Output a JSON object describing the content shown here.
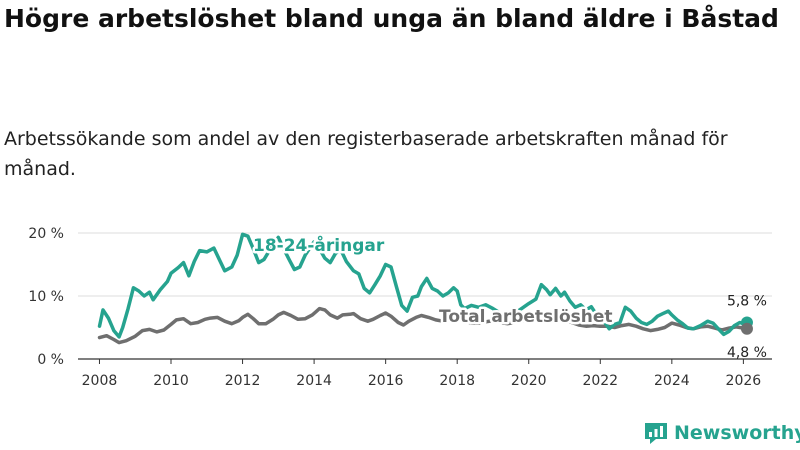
{
  "title": "Högre arbetslöshet bland unga än bland äldre i Båstad",
  "subtitle": "Arbetssökande som andel av den registerbaserade arbetskraften månad för månad.",
  "brand": {
    "name": "Newsworthy",
    "color": "#26a38f",
    "icon": "newsworthy-logo-icon"
  },
  "chart_data": {
    "type": "line",
    "title": "Högre arbetslöshet bland unga än bland äldre i Båstad",
    "xlabel": "",
    "ylabel": "",
    "xlim": [
      2007.4,
      2026.8
    ],
    "ylim": [
      0,
      20
    ],
    "grid": true,
    "x_ticks": [
      2008,
      2010,
      2012,
      2014,
      2016,
      2018,
      2020,
      2022,
      2024,
      2026
    ],
    "x_tick_labels": [
      "2008",
      "2010",
      "2012",
      "2014",
      "2016",
      "2018",
      "2020",
      "2022",
      "2024",
      "2026"
    ],
    "y_ticks": [
      0,
      10,
      20
    ],
    "y_tick_labels": [
      "0 %",
      "10 %",
      "20 %"
    ],
    "series": [
      {
        "name": "18-24-åringar",
        "color": "#26a38f",
        "end_label": "5,8 %",
        "points": [
          [
            2008.0,
            5.2
          ],
          [
            2008.1,
            7.8
          ],
          [
            2008.25,
            6.5
          ],
          [
            2008.4,
            4.5
          ],
          [
            2008.55,
            3.5
          ],
          [
            2008.65,
            5.0
          ],
          [
            2008.8,
            8.0
          ],
          [
            2008.95,
            11.3
          ],
          [
            2009.1,
            10.8
          ],
          [
            2009.25,
            10.0
          ],
          [
            2009.4,
            10.6
          ],
          [
            2009.5,
            9.4
          ],
          [
            2009.7,
            11.0
          ],
          [
            2009.9,
            12.3
          ],
          [
            2010.0,
            13.6
          ],
          [
            2010.2,
            14.5
          ],
          [
            2010.35,
            15.3
          ],
          [
            2010.5,
            13.2
          ],
          [
            2010.65,
            15.5
          ],
          [
            2010.8,
            17.2
          ],
          [
            2011.0,
            17.0
          ],
          [
            2011.2,
            17.6
          ],
          [
            2011.35,
            15.8
          ],
          [
            2011.5,
            14.0
          ],
          [
            2011.7,
            14.6
          ],
          [
            2011.85,
            16.5
          ],
          [
            2012.0,
            19.8
          ],
          [
            2012.15,
            19.5
          ],
          [
            2012.3,
            17.5
          ],
          [
            2012.45,
            15.3
          ],
          [
            2012.6,
            15.8
          ],
          [
            2012.75,
            17.2
          ],
          [
            2012.9,
            18.5
          ],
          [
            2013.0,
            19.3
          ],
          [
            2013.15,
            17.5
          ],
          [
            2013.3,
            15.8
          ],
          [
            2013.45,
            14.2
          ],
          [
            2013.6,
            14.6
          ],
          [
            2013.75,
            16.5
          ],
          [
            2013.9,
            17.8
          ],
          [
            2014.0,
            18.6
          ],
          [
            2014.15,
            17.5
          ],
          [
            2014.3,
            16.0
          ],
          [
            2014.45,
            15.3
          ],
          [
            2014.6,
            16.8
          ],
          [
            2014.75,
            17.3
          ],
          [
            2014.9,
            15.5
          ],
          [
            2015.1,
            14.0
          ],
          [
            2015.25,
            13.5
          ],
          [
            2015.4,
            11.2
          ],
          [
            2015.55,
            10.5
          ],
          [
            2015.7,
            11.8
          ],
          [
            2015.85,
            13.2
          ],
          [
            2016.0,
            15.0
          ],
          [
            2016.15,
            14.6
          ],
          [
            2016.3,
            11.5
          ],
          [
            2016.45,
            8.5
          ],
          [
            2016.6,
            7.6
          ],
          [
            2016.75,
            9.8
          ],
          [
            2016.9,
            10.0
          ],
          [
            2017.0,
            11.5
          ],
          [
            2017.15,
            12.8
          ],
          [
            2017.3,
            11.2
          ],
          [
            2017.45,
            10.8
          ],
          [
            2017.6,
            10.0
          ],
          [
            2017.75,
            10.5
          ],
          [
            2017.9,
            11.3
          ],
          [
            2018.0,
            10.8
          ],
          [
            2018.1,
            8.6
          ],
          [
            2018.2,
            8.0
          ],
          [
            2018.4,
            8.5
          ],
          [
            2018.6,
            8.2
          ],
          [
            2018.8,
            8.6
          ],
          [
            2019.0,
            8.0
          ],
          [
            2019.2,
            7.3
          ],
          [
            2019.4,
            7.0
          ],
          [
            2019.6,
            7.2
          ],
          [
            2019.8,
            8.0
          ],
          [
            2020.0,
            8.8
          ],
          [
            2020.2,
            9.5
          ],
          [
            2020.35,
            11.8
          ],
          [
            2020.5,
            11.0
          ],
          [
            2020.6,
            10.2
          ],
          [
            2020.75,
            11.2
          ],
          [
            2020.9,
            10.0
          ],
          [
            2021.0,
            10.6
          ],
          [
            2021.15,
            9.2
          ],
          [
            2021.3,
            8.2
          ],
          [
            2021.45,
            8.6
          ],
          [
            2021.6,
            7.8
          ],
          [
            2021.75,
            8.3
          ],
          [
            2021.9,
            7.0
          ],
          [
            2022.0,
            6.8
          ],
          [
            2022.1,
            6.0
          ],
          [
            2022.25,
            4.8
          ],
          [
            2022.4,
            5.5
          ],
          [
            2022.55,
            5.8
          ],
          [
            2022.7,
            8.2
          ],
          [
            2022.85,
            7.6
          ],
          [
            2023.0,
            6.5
          ],
          [
            2023.15,
            5.8
          ],
          [
            2023.3,
            5.5
          ],
          [
            2023.45,
            6.0
          ],
          [
            2023.6,
            6.8
          ],
          [
            2023.75,
            7.2
          ],
          [
            2023.9,
            7.6
          ],
          [
            2024.0,
            7.0
          ],
          [
            2024.15,
            6.2
          ],
          [
            2024.3,
            5.6
          ],
          [
            2024.45,
            4.9
          ],
          [
            2024.6,
            4.8
          ],
          [
            2024.8,
            5.3
          ],
          [
            2025.0,
            6.0
          ],
          [
            2025.15,
            5.7
          ],
          [
            2025.3,
            4.8
          ],
          [
            2025.45,
            3.9
          ],
          [
            2025.6,
            4.4
          ],
          [
            2025.75,
            5.3
          ],
          [
            2025.9,
            5.8
          ],
          [
            2026.0,
            5.6
          ],
          [
            2026.1,
            5.8
          ]
        ]
      },
      {
        "name": "Total arbetslöshet",
        "color": "#6f6f6f",
        "end_label": "4,8 %",
        "points": [
          [
            2008.0,
            3.4
          ],
          [
            2008.2,
            3.7
          ],
          [
            2008.4,
            3.1
          ],
          [
            2008.55,
            2.6
          ],
          [
            2008.75,
            2.9
          ],
          [
            2009.0,
            3.6
          ],
          [
            2009.2,
            4.5
          ],
          [
            2009.4,
            4.7
          ],
          [
            2009.6,
            4.3
          ],
          [
            2009.8,
            4.6
          ],
          [
            2010.0,
            5.5
          ],
          [
            2010.15,
            6.2
          ],
          [
            2010.35,
            6.4
          ],
          [
            2010.55,
            5.6
          ],
          [
            2010.75,
            5.8
          ],
          [
            2010.95,
            6.3
          ],
          [
            2011.1,
            6.5
          ],
          [
            2011.3,
            6.6
          ],
          [
            2011.5,
            6.0
          ],
          [
            2011.7,
            5.6
          ],
          [
            2011.9,
            6.1
          ],
          [
            2012.0,
            6.6
          ],
          [
            2012.15,
            7.1
          ],
          [
            2012.3,
            6.4
          ],
          [
            2012.45,
            5.6
          ],
          [
            2012.65,
            5.6
          ],
          [
            2012.85,
            6.3
          ],
          [
            2013.0,
            7.0
          ],
          [
            2013.15,
            7.4
          ],
          [
            2013.35,
            6.9
          ],
          [
            2013.55,
            6.3
          ],
          [
            2013.75,
            6.4
          ],
          [
            2013.95,
            7.0
          ],
          [
            2014.05,
            7.5
          ],
          [
            2014.15,
            8.0
          ],
          [
            2014.3,
            7.8
          ],
          [
            2014.45,
            7.0
          ],
          [
            2014.65,
            6.5
          ],
          [
            2014.8,
            7.0
          ],
          [
            2015.0,
            7.1
          ],
          [
            2015.1,
            7.2
          ],
          [
            2015.3,
            6.4
          ],
          [
            2015.5,
            6.0
          ],
          [
            2015.65,
            6.3
          ],
          [
            2015.85,
            6.9
          ],
          [
            2016.0,
            7.3
          ],
          [
            2016.15,
            6.8
          ],
          [
            2016.35,
            5.8
          ],
          [
            2016.5,
            5.4
          ],
          [
            2016.65,
            6.0
          ],
          [
            2016.85,
            6.6
          ],
          [
            2017.0,
            6.9
          ],
          [
            2017.2,
            6.6
          ],
          [
            2017.4,
            6.2
          ],
          [
            2017.6,
            6.0
          ],
          [
            2017.8,
            6.3
          ],
          [
            2018.0,
            6.6
          ],
          [
            2018.2,
            6.0
          ],
          [
            2018.4,
            5.7
          ],
          [
            2018.6,
            5.7
          ],
          [
            2018.8,
            5.9
          ],
          [
            2019.0,
            6.1
          ],
          [
            2019.2,
            5.8
          ],
          [
            2019.4,
            5.6
          ],
          [
            2019.6,
            5.8
          ],
          [
            2019.8,
            6.0
          ],
          [
            2020.0,
            6.4
          ],
          [
            2020.2,
            6.9
          ],
          [
            2020.4,
            6.5
          ],
          [
            2020.6,
            6.2
          ],
          [
            2020.8,
            6.4
          ],
          [
            2021.0,
            6.2
          ],
          [
            2021.2,
            5.8
          ],
          [
            2021.4,
            5.4
          ],
          [
            2021.6,
            5.2
          ],
          [
            2021.8,
            5.3
          ],
          [
            2022.0,
            5.2
          ],
          [
            2022.2,
            5.2
          ],
          [
            2022.4,
            5.0
          ],
          [
            2022.6,
            5.3
          ],
          [
            2022.8,
            5.5
          ],
          [
            2023.0,
            5.2
          ],
          [
            2023.2,
            4.8
          ],
          [
            2023.4,
            4.5
          ],
          [
            2023.6,
            4.7
          ],
          [
            2023.8,
            5.0
          ],
          [
            2024.0,
            5.7
          ],
          [
            2024.2,
            5.4
          ],
          [
            2024.4,
            5.0
          ],
          [
            2024.6,
            4.8
          ],
          [
            2024.8,
            5.1
          ],
          [
            2025.0,
            5.2
          ],
          [
            2025.2,
            4.9
          ],
          [
            2025.4,
            4.6
          ],
          [
            2025.6,
            4.9
          ],
          [
            2025.8,
            5.1
          ],
          [
            2026.0,
            4.9
          ],
          [
            2026.1,
            4.8
          ]
        ]
      }
    ],
    "annotations": [
      {
        "text": "18-24-åringar",
        "series": "18-24-åringar"
      },
      {
        "text": "Total arbetslöshet",
        "series": "Total arbetslöshet"
      }
    ]
  }
}
